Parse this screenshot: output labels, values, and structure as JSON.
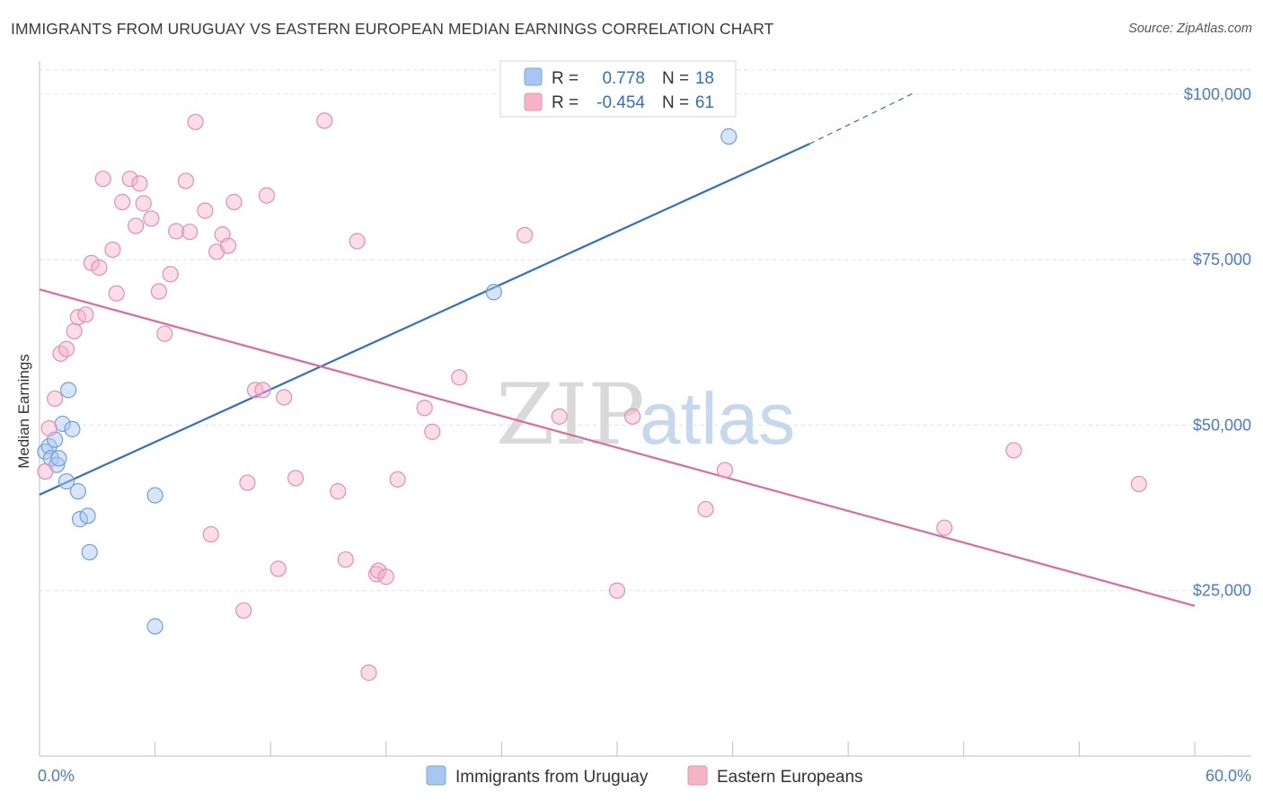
{
  "header": {
    "title": "IMMIGRANTS FROM URUGUAY VS EASTERN EUROPEAN MEDIAN EARNINGS CORRELATION CHART",
    "source": "Source: ZipAtlas.com"
  },
  "watermark": {
    "zip": "ZIP",
    "atlas": "atlas"
  },
  "colors": {
    "blue": "#2f6fd0",
    "blue_fill": "#a9c6f0",
    "pink": "#de6a95",
    "pink_fill": "#f5b3c8",
    "grid": "#dfe3ea",
    "tick_text": "#4a7cc9"
  },
  "chart_data": {
    "type": "scatter",
    "title": "IMMIGRANTS FROM URUGUAY VS EASTERN EUROPEAN MEDIAN EARNINGS CORRELATION CHART",
    "xlabel": "",
    "ylabel": "Median Earnings",
    "xlim": [
      0,
      60
    ],
    "ylim": [
      0,
      105000
    ],
    "x_tick_labels": [
      "0.0%",
      "60.0%"
    ],
    "y_ticks": [
      25000,
      50000,
      75000,
      100000
    ],
    "y_tick_labels": [
      "$25,000",
      "$50,000",
      "$75,000",
      "$100,000"
    ],
    "grid": true,
    "legend_position": "top-center",
    "stats": [
      {
        "r_label": "R =",
        "r": "0.778",
        "n_label": "N =",
        "n": "18"
      },
      {
        "r_label": "R =",
        "r": "-0.454",
        "n_label": "N =",
        "n": "61"
      }
    ],
    "series": [
      {
        "name": "Immigrants from Uruguay",
        "color": "#2f6fd0",
        "points": [
          [
            0.3,
            46000
          ],
          [
            0.5,
            46800
          ],
          [
            0.6,
            45000
          ],
          [
            0.8,
            47800
          ],
          [
            0.9,
            44000
          ],
          [
            1.0,
            45000
          ],
          [
            1.2,
            50200
          ],
          [
            1.4,
            41500
          ],
          [
            1.5,
            55300
          ],
          [
            1.7,
            49400
          ],
          [
            2.0,
            40000
          ],
          [
            2.1,
            35800
          ],
          [
            2.5,
            36300
          ],
          [
            2.6,
            30800
          ],
          [
            6.0,
            39400
          ],
          [
            6.0,
            19600
          ],
          [
            23.6,
            70100
          ],
          [
            35.8,
            93600
          ]
        ],
        "trend": {
          "x0": 0,
          "y0": 39500,
          "x1": 40,
          "y1": 92500,
          "dash_x1": 45.5,
          "dash_y1": 100300
        }
      },
      {
        "name": "Eastern Europeans",
        "color": "#de6a95",
        "points": [
          [
            0.3,
            43000
          ],
          [
            0.5,
            49500
          ],
          [
            0.8,
            54000
          ],
          [
            1.1,
            60800
          ],
          [
            1.4,
            61500
          ],
          [
            1.8,
            64200
          ],
          [
            2.0,
            66300
          ],
          [
            2.4,
            66700
          ],
          [
            2.7,
            74500
          ],
          [
            3.1,
            73800
          ],
          [
            3.3,
            87200
          ],
          [
            3.8,
            76500
          ],
          [
            4.0,
            69900
          ],
          [
            4.3,
            83700
          ],
          [
            4.7,
            87200
          ],
          [
            5.0,
            80100
          ],
          [
            5.2,
            86500
          ],
          [
            5.4,
            83500
          ],
          [
            5.8,
            81200
          ],
          [
            6.2,
            70200
          ],
          [
            6.5,
            63800
          ],
          [
            6.8,
            72800
          ],
          [
            7.1,
            79300
          ],
          [
            7.6,
            86900
          ],
          [
            7.8,
            79200
          ],
          [
            8.1,
            95800
          ],
          [
            8.6,
            82400
          ],
          [
            8.9,
            33500
          ],
          [
            9.2,
            76200
          ],
          [
            9.5,
            78800
          ],
          [
            9.8,
            77100
          ],
          [
            10.1,
            83700
          ],
          [
            10.6,
            22000
          ],
          [
            10.8,
            41300
          ],
          [
            11.2,
            55300
          ],
          [
            11.6,
            55300
          ],
          [
            11.8,
            84700
          ],
          [
            12.4,
            28300
          ],
          [
            12.7,
            54200
          ],
          [
            13.3,
            42000
          ],
          [
            14.8,
            96000
          ],
          [
            15.5,
            40000
          ],
          [
            15.9,
            29700
          ],
          [
            16.5,
            77800
          ],
          [
            17.1,
            12600
          ],
          [
            17.5,
            27500
          ],
          [
            17.6,
            28000
          ],
          [
            18.0,
            27100
          ],
          [
            18.6,
            41800
          ],
          [
            20.0,
            52600
          ],
          [
            20.4,
            49000
          ],
          [
            21.8,
            57200
          ],
          [
            25.2,
            78700
          ],
          [
            27.0,
            51300
          ],
          [
            30.0,
            25000
          ],
          [
            30.8,
            51300
          ],
          [
            34.6,
            37300
          ],
          [
            35.6,
            43200
          ],
          [
            47.0,
            34500
          ],
          [
            50.6,
            46200
          ],
          [
            57.1,
            41100
          ]
        ],
        "trend": {
          "x0": 0,
          "y0": 70500,
          "x1": 60,
          "y1": 22700
        }
      }
    ]
  }
}
